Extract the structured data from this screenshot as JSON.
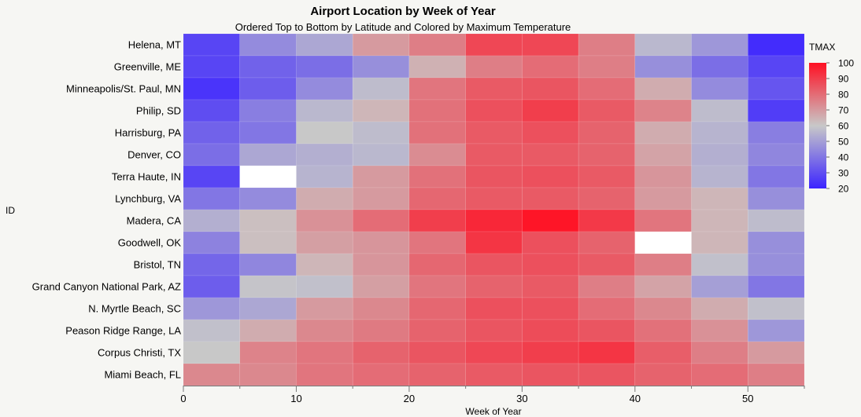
{
  "chart_data": {
    "type": "heatmap",
    "title": "Airport Location by Week of Year",
    "subtitle": "Ordered Top to Bottom by Latitude and Colored by Maximum Temperature",
    "xlabel": "Week of Year",
    "ylabel": "ID",
    "xlim": [
      0,
      55
    ],
    "x_ticks": [
      0,
      10,
      20,
      30,
      40,
      50
    ],
    "x_bins": [
      0,
      5,
      10,
      15,
      20,
      25,
      30,
      35,
      40,
      45,
      50
    ],
    "bin_width": 5,
    "rows": [
      "Helena, MT",
      "Greenville, ME",
      "Minneapolis/St. Paul, MN",
      "Philip, SD",
      "Harrisburg, PA",
      "Denver, CO",
      "Terra Haute, IN",
      "Lynchburg, VA",
      "Madera, CA",
      "Goodwell, OK",
      "Bristol, TN",
      "Grand Canyon National Park, AZ",
      "N. Myrtle Beach, SC",
      "Peason Ridge Range, LA",
      "Corpus Christi, TX",
      "Miami Beach, FL"
    ],
    "values": [
      [
        28,
        45,
        52,
        70,
        76,
        88,
        88,
        76,
        56,
        48,
        22
      ],
      [
        28,
        35,
        38,
        46,
        65,
        76,
        80,
        76,
        46,
        38,
        28
      ],
      [
        24,
        34,
        45,
        57,
        78,
        84,
        85,
        80,
        66,
        45,
        32
      ],
      [
        30,
        42,
        56,
        64,
        79,
        86,
        90,
        84,
        75,
        57,
        26
      ],
      [
        35,
        40,
        60,
        57,
        79,
        84,
        86,
        82,
        66,
        55,
        42
      ],
      [
        38,
        52,
        54,
        56,
        73,
        84,
        84,
        82,
        68,
        54,
        44
      ],
      [
        28,
        null,
        55,
        70,
        79,
        85,
        86,
        84,
        71,
        55,
        40
      ],
      [
        40,
        45,
        66,
        70,
        81,
        84,
        84,
        82,
        70,
        64,
        46
      ],
      [
        54,
        62,
        72,
        80,
        90,
        95,
        99,
        91,
        78,
        64,
        57
      ],
      [
        43,
        62,
        69,
        71,
        78,
        92,
        86,
        82,
        null,
        64,
        46
      ],
      [
        36,
        44,
        64,
        71,
        81,
        85,
        86,
        84,
        76,
        58,
        46
      ],
      [
        34,
        59,
        58,
        69,
        78,
        82,
        84,
        76,
        68,
        50,
        40
      ],
      [
        48,
        52,
        70,
        74,
        81,
        86,
        86,
        80,
        74,
        66,
        58
      ],
      [
        58,
        66,
        74,
        77,
        82,
        85,
        87,
        85,
        79,
        72,
        48
      ],
      [
        60,
        75,
        78,
        82,
        85,
        88,
        90,
        92,
        83,
        76,
        70
      ],
      [
        74,
        74,
        78,
        80,
        82,
        84,
        85,
        85,
        82,
        80,
        76
      ]
    ],
    "missing_color": "#ffffff",
    "colorscale": {
      "title": "TMAX",
      "min": 20,
      "max": 100,
      "ticks": [
        20,
        30,
        40,
        50,
        60,
        70,
        80,
        90,
        100
      ],
      "stops": [
        {
          "value": 20,
          "color": "#3c24ff"
        },
        {
          "value": 60,
          "color": "#c8c8c8"
        },
        {
          "value": 100,
          "color": "#ff1023"
        }
      ]
    }
  }
}
